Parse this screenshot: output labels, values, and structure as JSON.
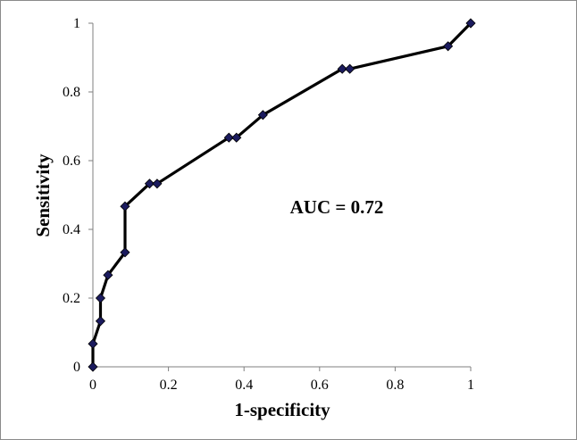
{
  "chart_data": {
    "type": "line",
    "title": "",
    "xlabel": "1-specificity",
    "ylabel": "Sensitivity",
    "xlim": [
      0,
      1
    ],
    "ylim": [
      0,
      1
    ],
    "x_ticks": [
      "0",
      "0.2",
      "0.4",
      "0.6",
      "0.8",
      "1"
    ],
    "y_ticks": [
      "0",
      "0.2",
      "0.4",
      "0.6",
      "0.8",
      "1"
    ],
    "grid": false,
    "legend": "none",
    "annotation": "AUC = 0.72",
    "series": [
      {
        "x": [
          0,
          0,
          0.02,
          0.02,
          0.04,
          0.085,
          0.085,
          0.15,
          0.17,
          0.36,
          0.38,
          0.45,
          0.66,
          0.68,
          0.94,
          1.0
        ],
        "y": [
          0,
          0.067,
          0.133,
          0.2,
          0.267,
          0.333,
          0.467,
          0.533,
          0.533,
          0.667,
          0.667,
          0.733,
          0.867,
          0.867,
          0.933,
          1.0
        ],
        "line_color": "#000000",
        "marker_color": "#1b1b5e",
        "marker": "diamond"
      }
    ]
  }
}
